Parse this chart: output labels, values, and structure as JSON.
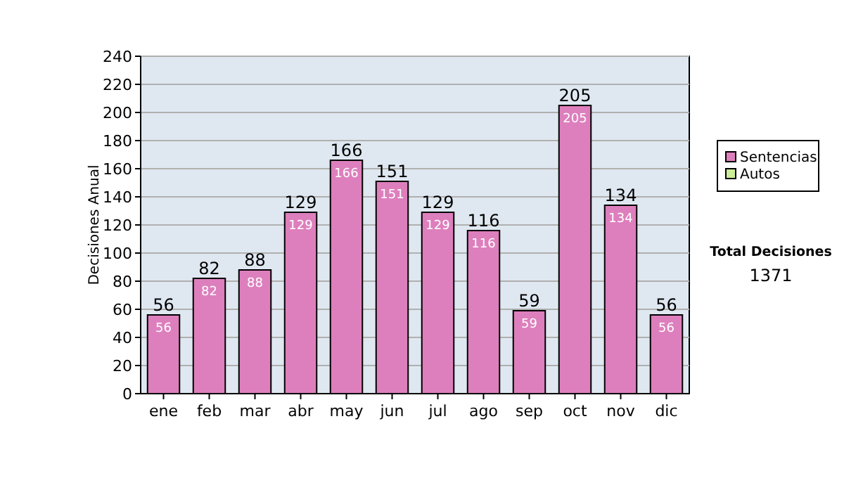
{
  "chart_data": {
    "type": "bar",
    "stacked": true,
    "ylabel": "Decisiones Anual",
    "categories": [
      "ene",
      "feb",
      "mar",
      "abr",
      "may",
      "jun",
      "jul",
      "ago",
      "sep",
      "oct",
      "nov",
      "dic"
    ],
    "series": [
      {
        "name": "Sentencias",
        "color": "#dd7fbd",
        "values": [
          56,
          82,
          88,
          129,
          166,
          151,
          129,
          116,
          59,
          205,
          134,
          56
        ],
        "value_labels": [
          "56",
          "82",
          "88",
          "129",
          "166",
          "151",
          "129",
          "116",
          "59",
          "205",
          "134",
          "56"
        ]
      },
      {
        "name": "Autos",
        "color": "#ccee99",
        "values": [
          0,
          0,
          0,
          0,
          0,
          0,
          0,
          0,
          0,
          0,
          0,
          0
        ]
      }
    ],
    "totals": [
      "56",
      "82",
      "88",
      "129",
      "166",
      "151",
      "129",
      "116",
      "59",
      "205",
      "134",
      "56"
    ],
    "ylim": [
      0,
      240
    ],
    "yticks": [
      0,
      20,
      40,
      60,
      80,
      100,
      120,
      140,
      160,
      180,
      200,
      220,
      240
    ],
    "grid": "y",
    "legend": "right",
    "annotations": [
      "Total Decisiones",
      "1371"
    ]
  }
}
